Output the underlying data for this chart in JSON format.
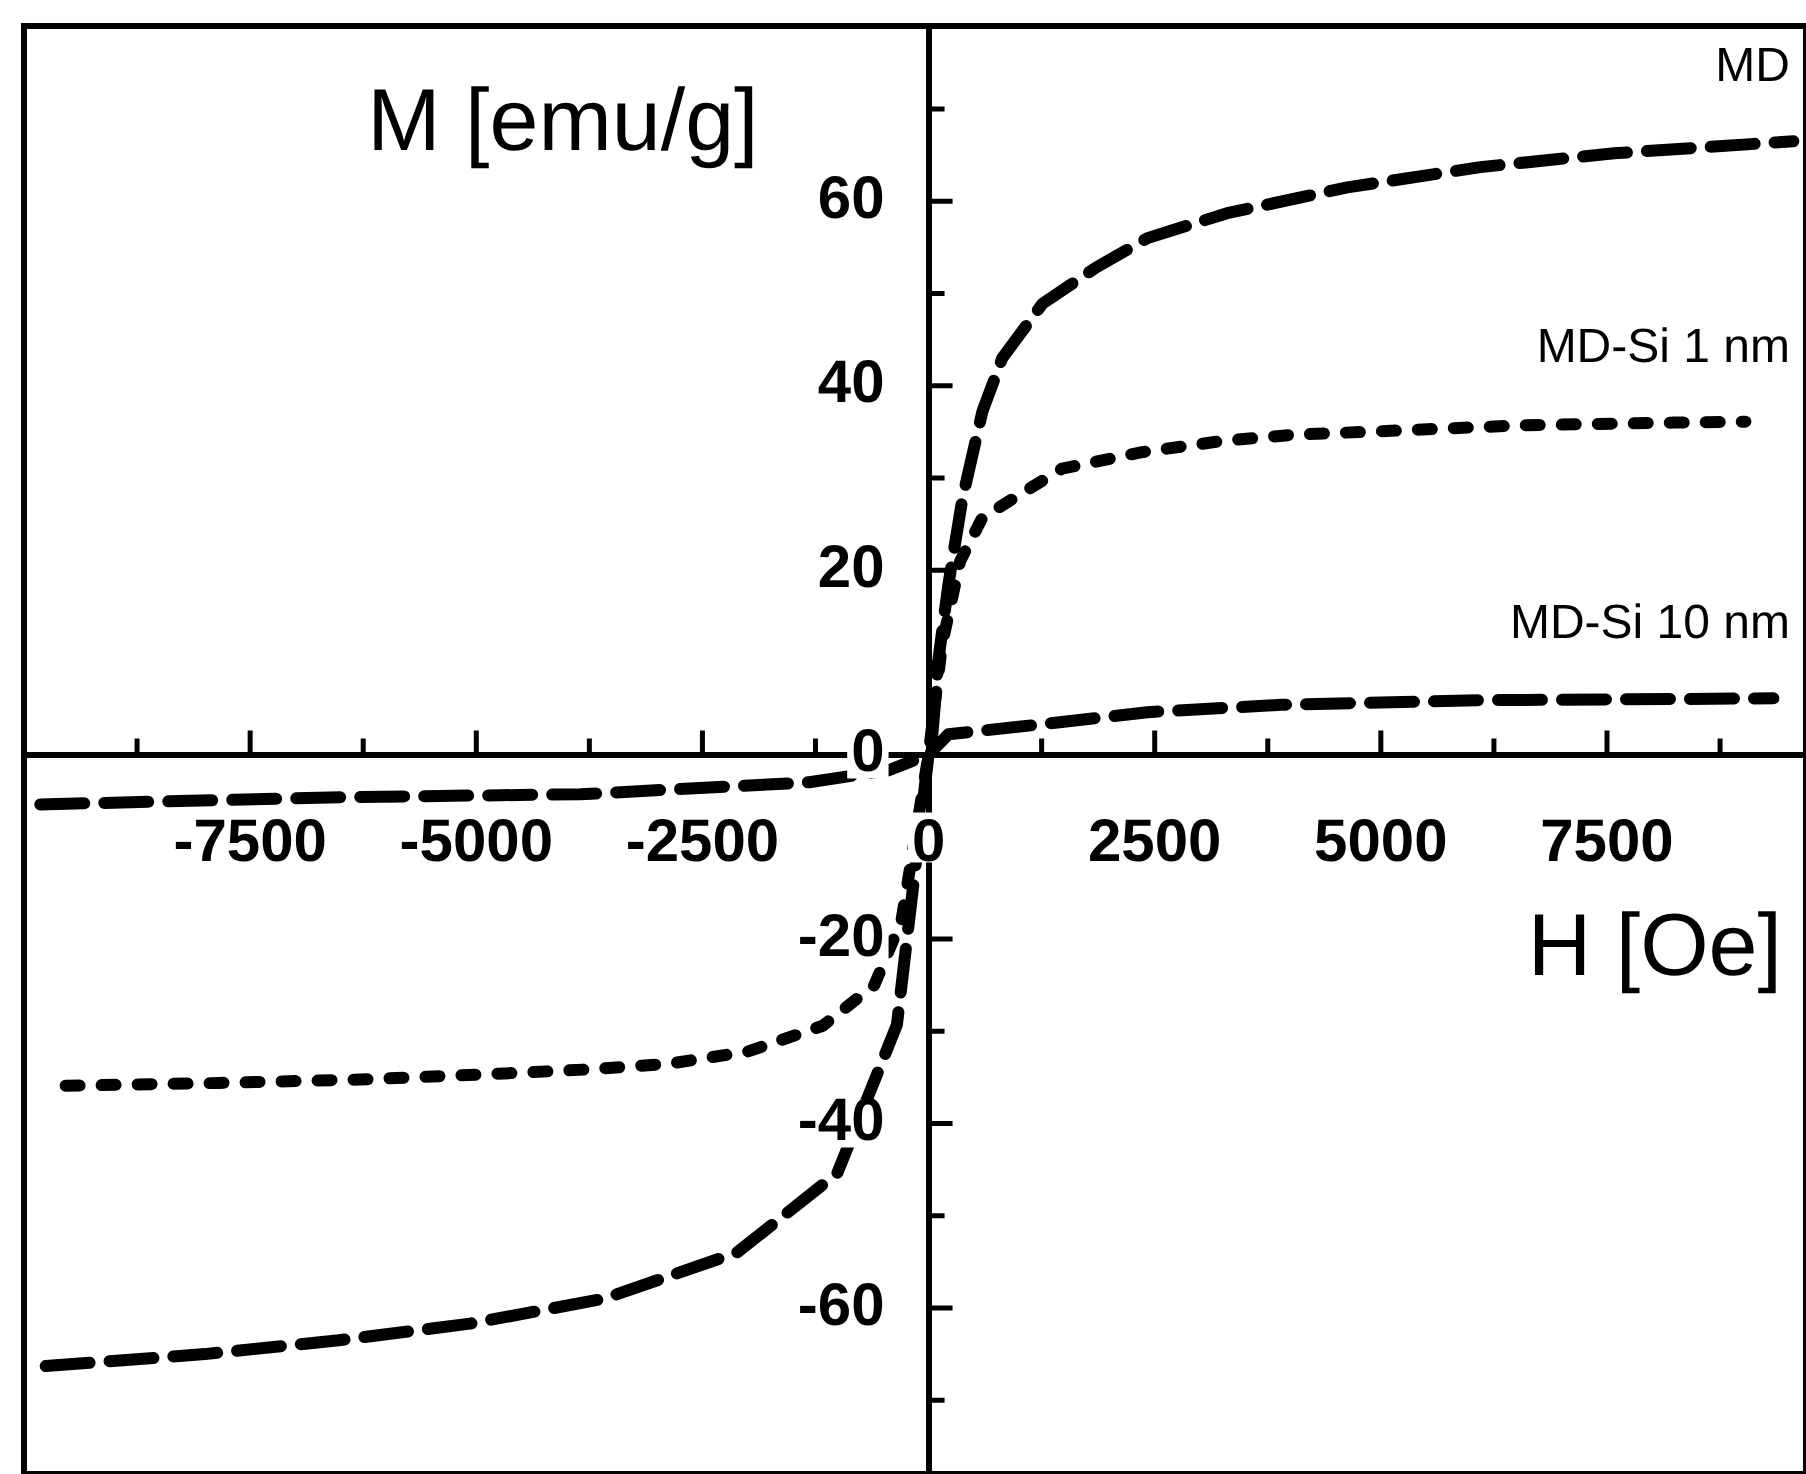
{
  "chart_data": {
    "type": "line",
    "xlabel": "H [Oe]",
    "ylabel": "M [emu/g]",
    "xlim": [
      -10000,
      9700
    ],
    "ylim": [
      -78,
      79
    ],
    "xticks": [
      {
        "value": -8750,
        "label": null
      },
      -7500,
      {
        "value": -6250,
        "label": null
      },
      -5000,
      {
        "value": -3750,
        "label": null
      },
      -2500,
      {
        "value": -1250,
        "label": null
      },
      0,
      {
        "value": 1250,
        "label": null
      },
      2500,
      {
        "value": 3750,
        "label": null
      },
      5000,
      {
        "value": 6250,
        "label": null
      },
      7500,
      {
        "value": 8750,
        "label": null
      }
    ],
    "yticks": [
      {
        "value": -70,
        "label": null
      },
      -60,
      {
        "value": -50,
        "label": null
      },
      -40,
      {
        "value": -30,
        "label": null
      },
      -20,
      {
        "value": -10,
        "label": null
      },
      0,
      {
        "value": 10,
        "label": null
      },
      20,
      {
        "value": 30,
        "label": null
      },
      40,
      {
        "value": 50,
        "label": null
      },
      60,
      {
        "value": 70,
        "label": null
      }
    ],
    "grid": false,
    "legend": false,
    "marker": "none",
    "series": [
      {
        "name": "MD",
        "color": "#000000",
        "line_style": "dashed",
        "x": [
          -9760,
          -8000,
          -6520,
          -5070,
          -3590,
          -2120,
          -1010,
          -350,
          0,
          44,
          110,
          220,
          375,
          595,
          815,
          1260,
          1850,
          2420,
          3300,
          4630,
          6100,
          7580,
          9560
        ],
        "values": [
          -66.3,
          -65,
          -63.5,
          -61.7,
          -59,
          -54,
          -45.4,
          -29.3,
          0,
          2.4,
          10.4,
          18.5,
          27.8,
          37.2,
          43,
          48.9,
          52.8,
          56,
          58.7,
          61.5,
          63.7,
          65.2,
          66.5
        ]
      },
      {
        "name": "MD-Si 1 nm",
        "color": "#000000",
        "line_style": "dotted",
        "x": [
          -9540,
          -7840,
          -6190,
          -4540,
          -3700,
          -2860,
          -2000,
          -1170,
          -600,
          -300,
          0,
          150,
          350,
          595,
          1475,
          2360,
          3240,
          4050,
          4850,
          6540,
          8240,
          9030
        ],
        "values": [
          -35.9,
          -35.6,
          -35.2,
          -34.5,
          -34.1,
          -33.5,
          -32.2,
          -29.4,
          -25,
          -18,
          0,
          12,
          21,
          25.7,
          31,
          32.8,
          34,
          34.7,
          35,
          35.7,
          36,
          36.1
        ]
      },
      {
        "name": "MD-Si 10 nm",
        "color": "#000000",
        "line_style": "dashed",
        "x": [
          -9820,
          -6390,
          -3850,
          -1320,
          -440,
          0,
          220,
          1255,
          2420,
          3900,
          6100,
          9340
        ],
        "values": [
          -5.4,
          -4.6,
          -4.3,
          -3,
          -1.7,
          0,
          2.2,
          3.3,
          4.6,
          5.4,
          5.9,
          6.1
        ]
      }
    ]
  }
}
